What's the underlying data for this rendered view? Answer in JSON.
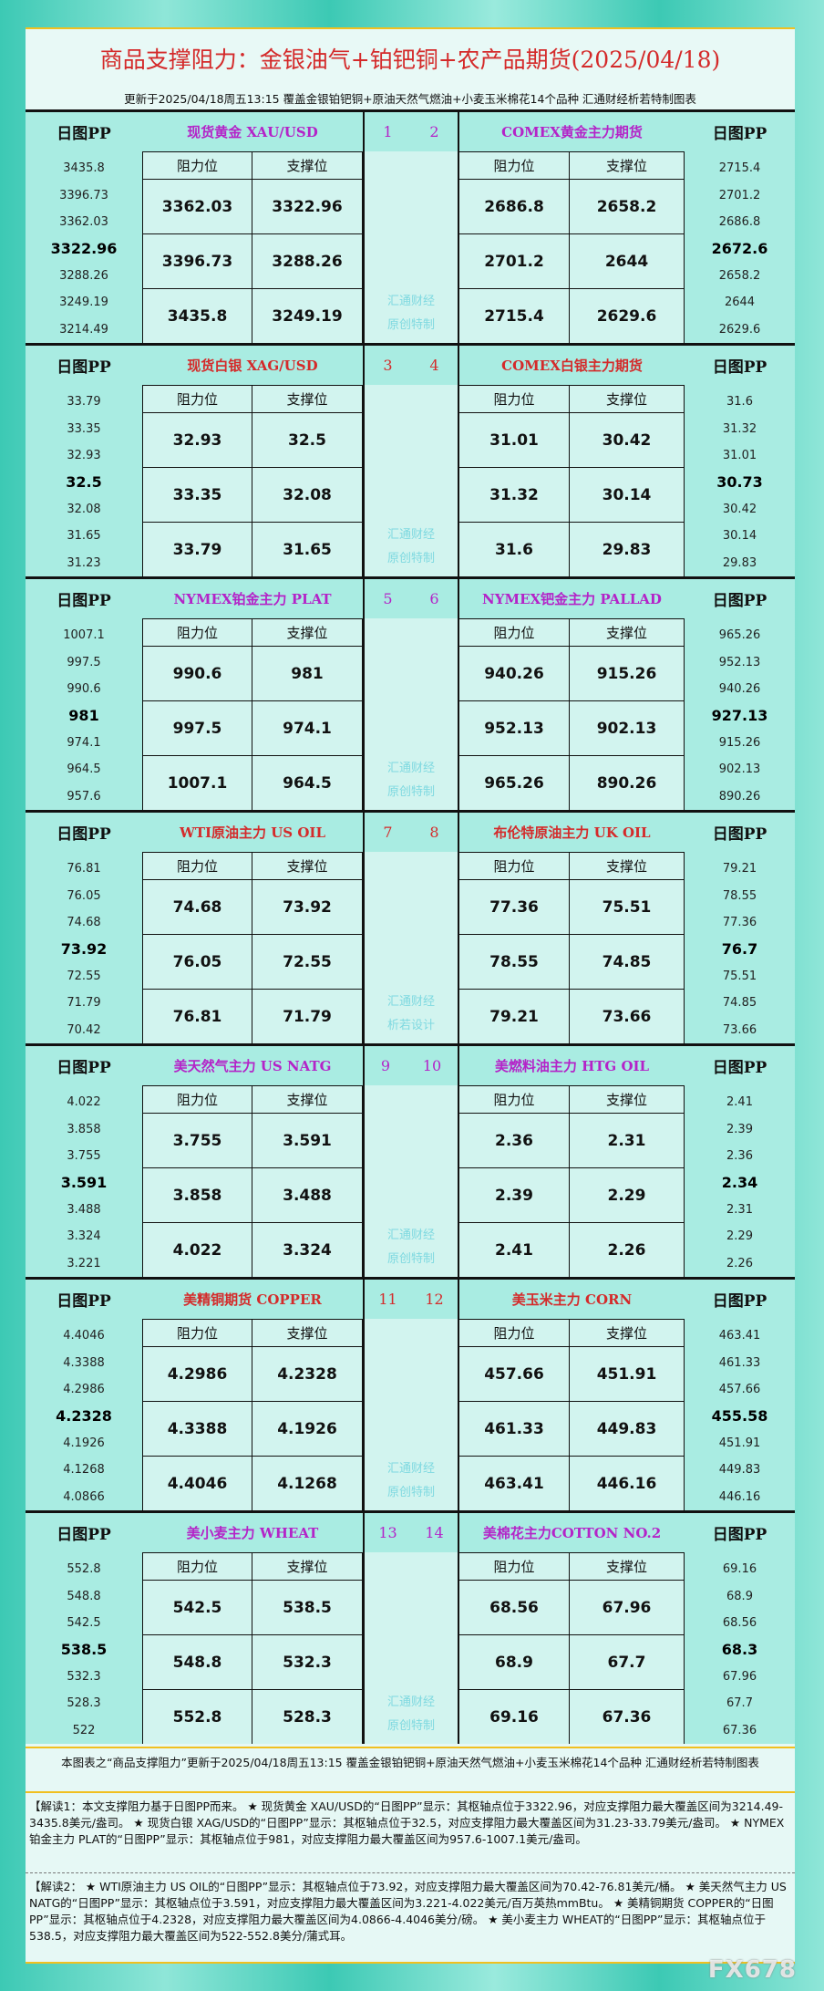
{
  "header": {
    "title": "商品支撑阻力：金银油气+铂钯铜+农产品期货(2025/04/18)",
    "subtitle": "更新于2025/04/18周五13:15 覆盖金银铂钯铜+原油天然气燃油+小麦玉米棉花14个品种 汇通财经析若特制图表"
  },
  "labels": {
    "pp": "日图PP",
    "resistance": "阻力位",
    "support": "支撑位"
  },
  "colors": {
    "purple": "#b423c8",
    "red": "#d42a2a"
  },
  "sections": [
    {
      "left": {
        "name": "现货黄金 XAU/USD",
        "num": "1",
        "color": "#b423c8",
        "pp": [
          "3435.8",
          "3396.73",
          "3362.03",
          "3322.96",
          "3288.26",
          "3249.19",
          "3214.49"
        ],
        "rows": [
          [
            "3362.03",
            "3322.96"
          ],
          [
            "3396.73",
            "3288.26"
          ],
          [
            "3435.8",
            "3249.19"
          ]
        ]
      },
      "right": {
        "name": "COMEX黄金主力期货",
        "num": "2",
        "color": "#b423c8",
        "pp": [
          "2715.4",
          "2701.2",
          "2686.8",
          "2672.6",
          "2658.2",
          "2644",
          "2629.6"
        ],
        "rows": [
          [
            "2686.8",
            "2658.2"
          ],
          [
            "2701.2",
            "2644"
          ],
          [
            "2715.4",
            "2629.6"
          ]
        ]
      },
      "watermark": [
        "汇通财经",
        "原创特制"
      ]
    },
    {
      "left": {
        "name": "现货白银 XAG/USD",
        "num": "3",
        "color": "#d42a2a",
        "pp": [
          "33.79",
          "33.35",
          "32.93",
          "32.5",
          "32.08",
          "31.65",
          "31.23"
        ],
        "rows": [
          [
            "32.93",
            "32.5"
          ],
          [
            "33.35",
            "32.08"
          ],
          [
            "33.79",
            "31.65"
          ]
        ]
      },
      "right": {
        "name": "COMEX白银主力期货",
        "num": "4",
        "color": "#d42a2a",
        "pp": [
          "31.6",
          "31.32",
          "31.01",
          "30.73",
          "30.42",
          "30.14",
          "29.83"
        ],
        "rows": [
          [
            "31.01",
            "30.42"
          ],
          [
            "31.32",
            "30.14"
          ],
          [
            "31.6",
            "29.83"
          ]
        ]
      },
      "watermark": [
        "汇通财经",
        "原创特制"
      ]
    },
    {
      "left": {
        "name": "NYMEX铂金主力 PLAT",
        "num": "5",
        "color": "#b423c8",
        "pp": [
          "1007.1",
          "997.5",
          "990.6",
          "981",
          "974.1",
          "964.5",
          "957.6"
        ],
        "rows": [
          [
            "990.6",
            "981"
          ],
          [
            "997.5",
            "974.1"
          ],
          [
            "1007.1",
            "964.5"
          ]
        ]
      },
      "right": {
        "name": "NYMEX钯金主力 PALLAD",
        "num": "6",
        "color": "#b423c8",
        "pp": [
          "965.26",
          "952.13",
          "940.26",
          "927.13",
          "915.26",
          "902.13",
          "890.26"
        ],
        "rows": [
          [
            "940.26",
            "915.26"
          ],
          [
            "952.13",
            "902.13"
          ],
          [
            "965.26",
            "890.26"
          ]
        ]
      },
      "watermark": [
        "汇通财经",
        "原创特制"
      ]
    },
    {
      "left": {
        "name": "WTI原油主力 US OIL",
        "num": "7",
        "color": "#d42a2a",
        "pp": [
          "76.81",
          "76.05",
          "74.68",
          "73.92",
          "72.55",
          "71.79",
          "70.42"
        ],
        "rows": [
          [
            "74.68",
            "73.92"
          ],
          [
            "76.05",
            "72.55"
          ],
          [
            "76.81",
            "71.79"
          ]
        ]
      },
      "right": {
        "name": "布伦特原油主力 UK OIL",
        "num": "8",
        "color": "#d42a2a",
        "pp": [
          "79.21",
          "78.55",
          "77.36",
          "76.7",
          "75.51",
          "74.85",
          "73.66"
        ],
        "rows": [
          [
            "77.36",
            "75.51"
          ],
          [
            "78.55",
            "74.85"
          ],
          [
            "79.21",
            "73.66"
          ]
        ]
      },
      "watermark": [
        "汇通财经",
        "析若设计"
      ]
    },
    {
      "left": {
        "name": "美天然气主力 US NATG",
        "num": "9",
        "color": "#b423c8",
        "pp": [
          "4.022",
          "3.858",
          "3.755",
          "3.591",
          "3.488",
          "3.324",
          "3.221"
        ],
        "rows": [
          [
            "3.755",
            "3.591"
          ],
          [
            "3.858",
            "3.488"
          ],
          [
            "4.022",
            "3.324"
          ]
        ]
      },
      "right": {
        "name": "美燃料油主力 HTG OIL",
        "num": "10",
        "color": "#b423c8",
        "pp": [
          "2.41",
          "2.39",
          "2.36",
          "2.34",
          "2.31",
          "2.29",
          "2.26"
        ],
        "rows": [
          [
            "2.36",
            "2.31"
          ],
          [
            "2.39",
            "2.29"
          ],
          [
            "2.41",
            "2.26"
          ]
        ]
      },
      "watermark": [
        "汇通财经",
        "原创特制"
      ]
    },
    {
      "left": {
        "name": "美精铜期货 COPPER",
        "num": "11",
        "color": "#d42a2a",
        "pp": [
          "4.4046",
          "4.3388",
          "4.2986",
          "4.2328",
          "4.1926",
          "4.1268",
          "4.0866"
        ],
        "rows": [
          [
            "4.2986",
            "4.2328"
          ],
          [
            "4.3388",
            "4.1926"
          ],
          [
            "4.4046",
            "4.1268"
          ]
        ]
      },
      "right": {
        "name": "美玉米主力 CORN",
        "num": "12",
        "color": "#d42a2a",
        "pp": [
          "463.41",
          "461.33",
          "457.66",
          "455.58",
          "451.91",
          "449.83",
          "446.16"
        ],
        "rows": [
          [
            "457.66",
            "451.91"
          ],
          [
            "461.33",
            "449.83"
          ],
          [
            "463.41",
            "446.16"
          ]
        ]
      },
      "watermark": [
        "汇通财经",
        "原创特制"
      ]
    },
    {
      "left": {
        "name": "美小麦主力 WHEAT",
        "num": "13",
        "color": "#b423c8",
        "pp": [
          "552.8",
          "548.8",
          "542.5",
          "538.5",
          "532.3",
          "528.3",
          "522"
        ],
        "rows": [
          [
            "542.5",
            "538.5"
          ],
          [
            "548.8",
            "532.3"
          ],
          [
            "552.8",
            "528.3"
          ]
        ]
      },
      "right": {
        "name": "美棉花主力COTTON NO.2",
        "num": "14",
        "color": "#b423c8",
        "pp": [
          "69.16",
          "68.9",
          "68.56",
          "68.3",
          "67.96",
          "67.7",
          "67.36"
        ],
        "rows": [
          [
            "68.56",
            "67.96"
          ],
          [
            "68.9",
            "67.7"
          ],
          [
            "69.16",
            "67.36"
          ]
        ]
      },
      "watermark": [
        "汇通财经",
        "原创特制"
      ]
    }
  ],
  "footer": {
    "note": "本图表之“商品支撑阻力”更新于2025/04/18周五13:15 覆盖金银铂钯铜+原油天然气燃油+小麦玉米棉花14个品种 汇通财经析若特制图表",
    "explain1": "【解读1：本文支撑阻力基于日图PP而来。 ★ 现货黄金 XAU/USD的“日图PP”显示：其枢轴点位于3322.96，对应支撑阻力最大覆盖区间为3214.49-3435.8美元/盎司。 ★ 现货白银 XAG/USD的“日图PP”显示：其枢轴点位于32.5，对应支撑阻力最大覆盖区间为31.23-33.79美元/盎司。 ★ NYMEX铂金主力 PLAT的“日图PP”显示：其枢轴点位于981，对应支撑阻力最大覆盖区间为957.6-1007.1美元/盎司。",
    "explain2": "【解读2： ★ WTI原油主力 US OIL的“日图PP”显示：其枢轴点位于73.92，对应支撑阻力最大覆盖区间为70.42-76.81美元/桶。 ★ 美天然气主力 US NATG的“日图PP”显示：其枢轴点位于3.591，对应支撑阻力最大覆盖区间为3.221-4.022美元/百万英热mmBtu。 ★ 美精铜期货 COPPER的“日图PP”显示：其枢轴点位于4.2328，对应支撑阻力最大覆盖区间为4.0866-4.4046美分/磅。 ★ 美小麦主力 WHEAT的“日图PP”显示：其枢轴点位于538.5，对应支撑阻力最大覆盖区间为522-552.8美分/蒲式耳。",
    "logo": "FX678"
  }
}
